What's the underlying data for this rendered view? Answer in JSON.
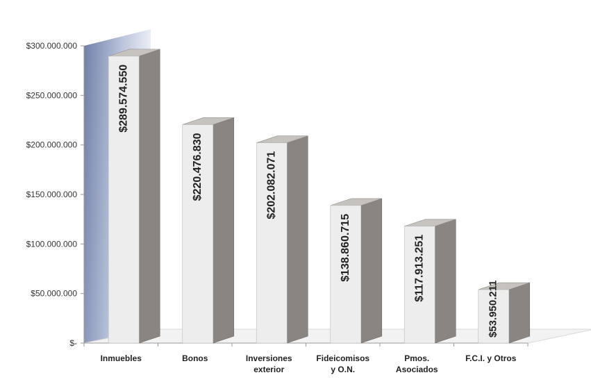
{
  "chart_data": {
    "type": "bar",
    "categories": [
      [
        "Inmuebles"
      ],
      [
        "Bonos"
      ],
      [
        "Inversiones",
        "exterior"
      ],
      [
        "Fideicomisos",
        "y O.N."
      ],
      [
        "Pmos.",
        "Asociados"
      ],
      [
        "F.C.I. y Otros"
      ]
    ],
    "values": [
      289574550,
      220476830,
      202082071,
      138860715,
      117913251,
      53950211
    ],
    "value_labels": [
      "$289.574.550",
      "$220.476.830",
      "$202.082.071",
      "$138.860.715",
      "$117.913.251",
      "$53.950.211"
    ],
    "y_ticks": [
      {
        "value": 0,
        "label": "$-"
      },
      {
        "value": 50000000,
        "label": "$50.000.000"
      },
      {
        "value": 100000000,
        "label": "$100.000.000"
      },
      {
        "value": 150000000,
        "label": "$150.000.000"
      },
      {
        "value": 200000000,
        "label": "$200.000.000"
      },
      {
        "value": 250000000,
        "label": "$250.000.000"
      },
      {
        "value": 300000000,
        "label": "$300.000.000"
      }
    ],
    "ylim": [
      0,
      300000000
    ],
    "grid": false,
    "legend": "none",
    "colors": {
      "bar_front": "#ededed",
      "bar_side": "#8a8580",
      "bar_top": "#c6c2bd",
      "back_wall_dark": "#6f7fa6",
      "back_wall_light": "#e9edf5",
      "floor": "#f2f2f2"
    }
  }
}
